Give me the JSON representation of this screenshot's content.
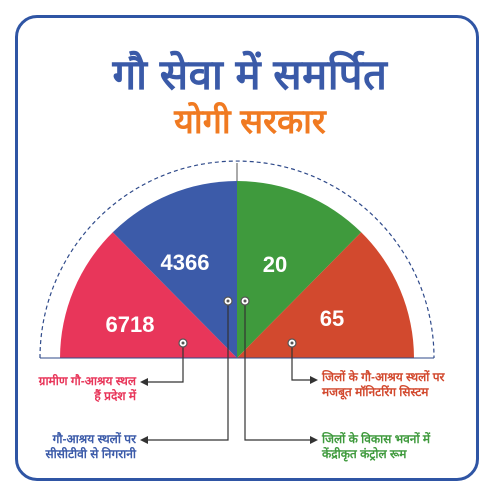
{
  "title": {
    "main": "गौ सेवा में समर्पित",
    "sub": "योगी सरकार"
  },
  "colors": {
    "border": "#2f55a4",
    "title_main": "#3a5aa8",
    "title_sub": "#f07a21",
    "segment_red": "#e8365a",
    "segment_blue": "#3c5ba9",
    "segment_green": "#3f9a3d",
    "segment_orange": "#d2492e"
  },
  "segments": [
    {
      "value": "6718",
      "caption": "ग्रामीण गौ-आश्रय स्थल हैं प्रदेश में"
    },
    {
      "value": "4366",
      "caption": "गौ-आश्रय स्थलों पर सीसीटीवी से निगरानी"
    },
    {
      "value": "20",
      "caption": "जिलों के विकास भवनों में केंद्रीकृत कंट्रोल रूम"
    },
    {
      "value": "65",
      "caption": "जिलों के गौ-आश्रय स्थलों पर मजबूत मॉनिटरिंग सिस्टम"
    }
  ]
}
